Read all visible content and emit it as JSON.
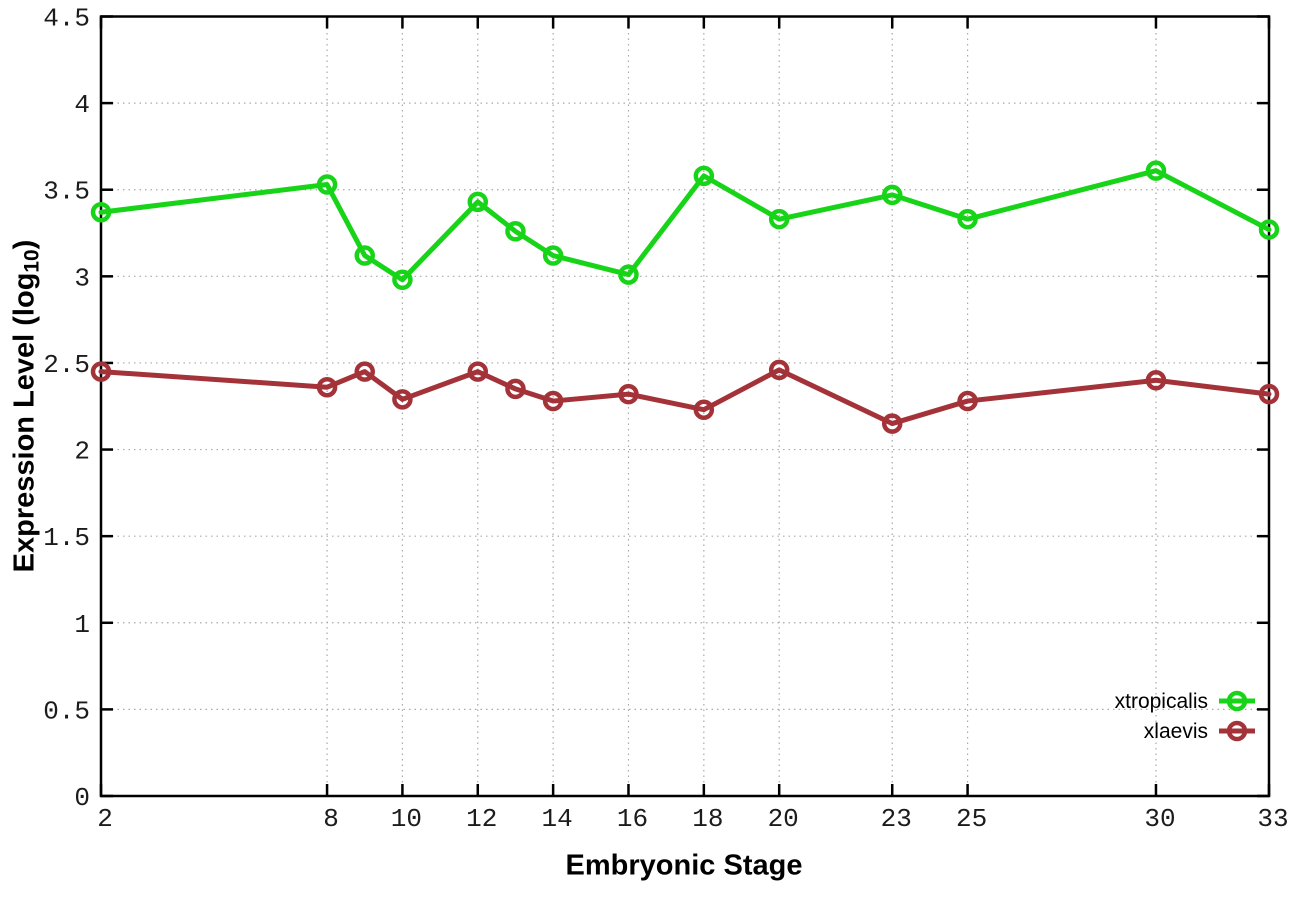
{
  "style": {
    "background": "#ffffff",
    "border_color": "#000000",
    "grid_color": "#a9a9a9",
    "tick_label_color": "#1c1c1c"
  },
  "chart_data": {
    "type": "line",
    "title": "",
    "xlabel": "Embryonic Stage",
    "ylabel": "Expression Level (log10)",
    "ylabel_prefix": "Expression Level (log",
    "ylabel_sub": "10",
    "ylabel_suffix": ")",
    "xlim": [
      2,
      33
    ],
    "ylim": [
      0,
      4.5
    ],
    "grid": true,
    "legend_position": "bottom-right",
    "x": [
      2,
      8,
      9,
      10,
      12,
      13,
      14,
      16,
      18,
      20,
      23,
      25,
      30,
      33
    ],
    "series": [
      {
        "name": "xtropicalis",
        "color": "#18d418",
        "values": [
          3.37,
          3.53,
          3.12,
          2.98,
          3.43,
          3.26,
          3.12,
          3.01,
          3.58,
          3.33,
          3.47,
          3.33,
          3.61,
          3.27
        ]
      },
      {
        "name": "xlaevis",
        "color": "#a43339",
        "values": [
          2.45,
          2.36,
          2.45,
          2.29,
          2.45,
          2.35,
          2.28,
          2.32,
          2.23,
          2.46,
          2.15,
          2.28,
          2.4,
          2.32
        ]
      }
    ],
    "xticks": {
      "values": [
        2,
        8,
        10,
        12,
        14,
        16,
        18,
        20,
        23,
        25,
        30,
        33
      ],
      "labels": [
        "2",
        "8",
        "10",
        "12",
        "14",
        "16",
        "18",
        "20",
        "23",
        "25",
        "30",
        "33"
      ]
    },
    "yticks": {
      "values": [
        0,
        0.5,
        1,
        1.5,
        2,
        2.5,
        3,
        3.5,
        4,
        4.5
      ],
      "labels": [
        "0",
        "0.5",
        "1",
        "1.5",
        "2",
        "2.5",
        "3",
        "3.5",
        "4",
        "4.5"
      ]
    }
  }
}
